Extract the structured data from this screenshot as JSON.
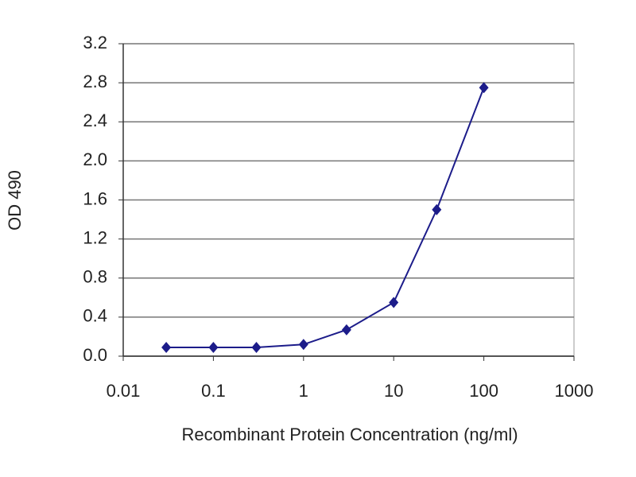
{
  "chart_data": {
    "type": "line",
    "x_label": "Recombinant Protein Concentration (ng/ml)",
    "y_label": "OD 490",
    "x": [
      0.03,
      0.1,
      0.3,
      1,
      3,
      10,
      30,
      100
    ],
    "values": [
      0.09,
      0.09,
      0.09,
      0.12,
      0.27,
      0.55,
      1.5,
      2.75
    ],
    "color": "#1c1c8a",
    "xlog": true,
    "xlim": [
      0.01,
      1000
    ],
    "xticks": [
      0.01,
      0.1,
      1,
      10,
      100,
      1000
    ],
    "ylim": [
      0,
      3.2
    ],
    "yticks": [
      {
        "value": 0,
        "label": "0.0"
      },
      0.4,
      0.8,
      1.2,
      1.6,
      {
        "value": 2,
        "label": "2.0"
      },
      2.4,
      2.8,
      3.2
    ],
    "grid": true
  }
}
